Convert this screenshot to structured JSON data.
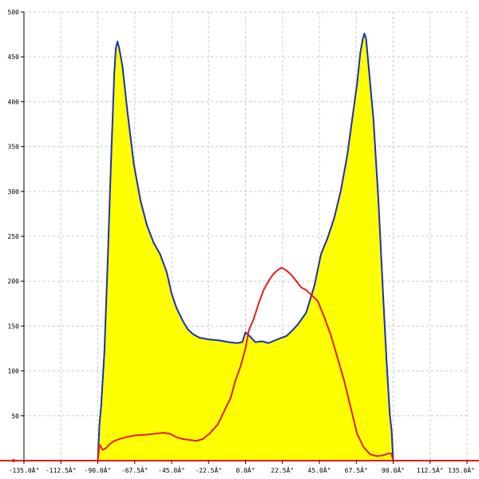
{
  "chart_data": {
    "type": "area",
    "title": "",
    "xlabel": "",
    "ylabel": "",
    "xlim": [
      -135,
      135
    ],
    "ylim": [
      0,
      500
    ],
    "grid": true,
    "x_ticks": [
      -135,
      -112.5,
      -90,
      -67.5,
      -45,
      -22.5,
      0,
      22.5,
      45,
      67.5,
      90,
      112.5,
      135
    ],
    "x_tick_labels": [
      "-135.0Â°",
      "-112.5Â°",
      "-90.0Â°",
      "-67.5Â°",
      "-45.0Â°",
      "-22.5Â°",
      "0.0Â°",
      "22.5Â°",
      "45.0Â°",
      "67.5Â°",
      "90.0Â°",
      "112.5Â°",
      "135.0Â°"
    ],
    "y_ticks": [
      50,
      100,
      150,
      200,
      250,
      300,
      350,
      400,
      450,
      500
    ],
    "y_tick_labels": [
      "50",
      "100",
      "150",
      "200",
      "250",
      "300",
      "350",
      "400",
      "450",
      "500"
    ],
    "series": [
      {
        "color": "#1a2fb8",
        "fill": "#ffff00",
        "points": [
          [
            -90,
            0
          ],
          [
            -89,
            40
          ],
          [
            -88,
            60
          ],
          [
            -86,
            120
          ],
          [
            -84,
            220
          ],
          [
            -82,
            330
          ],
          [
            -80,
            430
          ],
          [
            -79,
            460
          ],
          [
            -78,
            467
          ],
          [
            -77,
            460
          ],
          [
            -75,
            440
          ],
          [
            -72,
            390
          ],
          [
            -68,
            330
          ],
          [
            -64,
            290
          ],
          [
            -60,
            262
          ],
          [
            -56,
            243
          ],
          [
            -52,
            230
          ],
          [
            -48,
            210
          ],
          [
            -45,
            186
          ],
          [
            -42,
            170
          ],
          [
            -38,
            155
          ],
          [
            -35,
            146
          ],
          [
            -32,
            141
          ],
          [
            -28,
            137
          ],
          [
            -22,
            135
          ],
          [
            -16,
            134
          ],
          [
            -10,
            132
          ],
          [
            -5,
            131
          ],
          [
            -2,
            132
          ],
          [
            0,
            143
          ],
          [
            3,
            138
          ],
          [
            6,
            132
          ],
          [
            10,
            133
          ],
          [
            14,
            131
          ],
          [
            18,
            134
          ],
          [
            22,
            137
          ],
          [
            25,
            139
          ],
          [
            28,
            144
          ],
          [
            32,
            152
          ],
          [
            37,
            165
          ],
          [
            42,
            195
          ],
          [
            46,
            230
          ],
          [
            50,
            248
          ],
          [
            54,
            270
          ],
          [
            58,
            300
          ],
          [
            62,
            340
          ],
          [
            65,
            380
          ],
          [
            68,
            420
          ],
          [
            70,
            455
          ],
          [
            71.5,
            470
          ],
          [
            72.5,
            476
          ],
          [
            73.5,
            470
          ],
          [
            75,
            440
          ],
          [
            78,
            380
          ],
          [
            81,
            290
          ],
          [
            84,
            180
          ],
          [
            86,
            110
          ],
          [
            88,
            50
          ],
          [
            89,
            35
          ],
          [
            90,
            0
          ]
        ]
      },
      {
        "color": "#e02020",
        "points": [
          [
            -92,
            0
          ],
          [
            -90,
            0
          ],
          [
            -89,
            18
          ],
          [
            -87,
            12
          ],
          [
            -85,
            14
          ],
          [
            -83,
            18
          ],
          [
            -80,
            22
          ],
          [
            -77,
            24
          ],
          [
            -73,
            26
          ],
          [
            -68,
            28
          ],
          [
            -60,
            29
          ],
          [
            -55,
            30
          ],
          [
            -50,
            31
          ],
          [
            -46,
            30
          ],
          [
            -42,
            26
          ],
          [
            -38,
            24
          ],
          [
            -34,
            23
          ],
          [
            -30,
            22
          ],
          [
            -26,
            24
          ],
          [
            -22,
            30
          ],
          [
            -17,
            40
          ],
          [
            -13,
            55
          ],
          [
            -9,
            70
          ],
          [
            -6,
            90
          ],
          [
            -3,
            105
          ],
          [
            0,
            125
          ],
          [
            2,
            145
          ],
          [
            5,
            158
          ],
          [
            8,
            175
          ],
          [
            11,
            190
          ],
          [
            14,
            200
          ],
          [
            17,
            208
          ],
          [
            20,
            213
          ],
          [
            22,
            215
          ],
          [
            25,
            212
          ],
          [
            28,
            207
          ],
          [
            31,
            200
          ],
          [
            34,
            193
          ],
          [
            37,
            190
          ],
          [
            40,
            185
          ],
          [
            44,
            178
          ],
          [
            48,
            160
          ],
          [
            52,
            140
          ],
          [
            56,
            115
          ],
          [
            60,
            90
          ],
          [
            64,
            60
          ],
          [
            68,
            30
          ],
          [
            72,
            15
          ],
          [
            76,
            7
          ],
          [
            80,
            5
          ],
          [
            84,
            6
          ],
          [
            87,
            8
          ],
          [
            89,
            8
          ],
          [
            90,
            0
          ],
          [
            140,
            0
          ]
        ]
      }
    ]
  }
}
